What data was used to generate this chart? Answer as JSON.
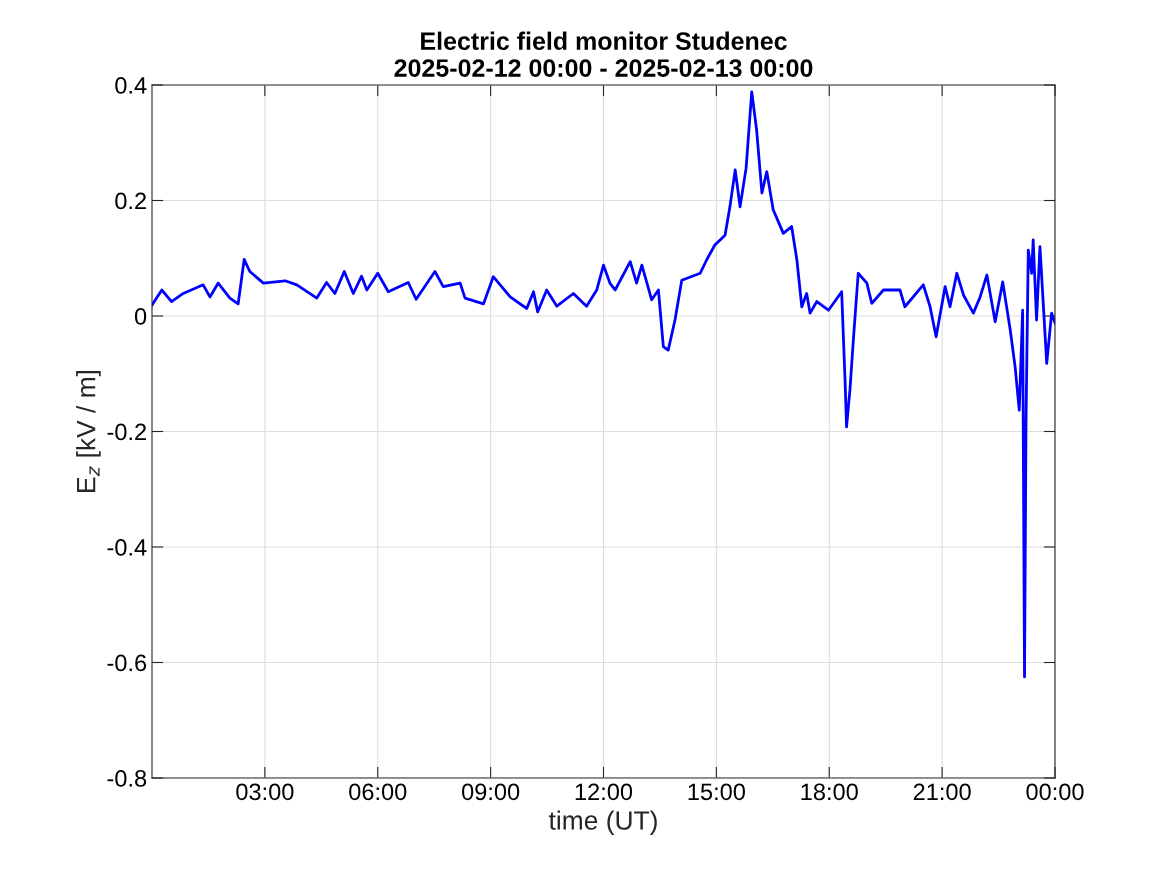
{
  "chart_data": {
    "type": "line",
    "title": "Electric field monitor Studenec\n2025-02-12 00:00 - 2025-02-13 00:00",
    "xlabel": "time (UT)",
    "ylabel": "E$_{z}$ [kV / m]",
    "x": [
      0,
      0.26,
      0.52,
      0.83,
      1.36,
      1.54,
      1.76,
      2.07,
      2.29,
      2.45,
      2.6,
      2.96,
      3.54,
      3.85,
      4.38,
      4.64,
      4.86,
      5.11,
      5.35,
      5.57,
      5.71,
      6.0,
      6.28,
      6.81,
      7.02,
      7.52,
      7.74,
      8.19,
      8.32,
      8.81,
      9.07,
      9.52,
      9.96,
      10.14,
      10.25,
      10.49,
      10.76,
      11.2,
      11.55,
      11.82,
      12.0,
      12.17,
      12.31,
      12.71,
      12.88,
      13.02,
      13.28,
      13.46,
      13.59,
      13.72,
      13.9,
      14.08,
      14.57,
      14.74,
      14.96,
      15.23,
      15.36,
      15.5,
      15.63,
      15.79,
      15.94,
      16.07,
      16.21,
      16.34,
      16.51,
      16.78,
      17.0,
      17.14,
      17.27,
      17.4,
      17.49,
      17.67,
      17.98,
      18.33,
      18.42,
      18.46,
      18.55,
      18.64,
      18.77,
      19.0,
      19.13,
      19.44,
      19.88,
      20.01,
      20.5,
      20.68,
      20.84,
      21.08,
      21.21,
      21.39,
      21.57,
      21.83,
      22.01,
      22.19,
      22.41,
      22.61,
      22.81,
      22.94,
      23.05,
      23.14,
      23.19,
      23.23,
      23.29,
      23.38,
      23.42,
      23.51,
      23.6,
      23.78,
      23.91,
      24.0
    ],
    "series": [
      {
        "color": "#0000ff",
        "values": [
          0.019,
          0.045,
          0.025,
          0.039,
          0.054,
          0.033,
          0.057,
          0.031,
          0.021,
          0.098,
          0.077,
          0.057,
          0.061,
          0.054,
          0.031,
          0.058,
          0.039,
          0.077,
          0.039,
          0.069,
          0.045,
          0.074,
          0.042,
          0.058,
          0.029,
          0.077,
          0.051,
          0.057,
          0.031,
          0.021,
          0.068,
          0.033,
          0.013,
          0.042,
          0.007,
          0.045,
          0.017,
          0.039,
          0.017,
          0.045,
          0.088,
          0.057,
          0.045,
          0.094,
          0.057,
          0.088,
          0.028,
          0.045,
          -0.053,
          -0.059,
          -0.007,
          0.062,
          0.074,
          0.097,
          0.123,
          0.14,
          0.189,
          0.253,
          0.189,
          0.256,
          0.388,
          0.322,
          0.213,
          0.25,
          0.184,
          0.143,
          0.155,
          0.097,
          0.016,
          0.039,
          0.005,
          0.025,
          0.01,
          0.042,
          -0.111,
          -0.192,
          -0.128,
          -0.042,
          0.074,
          0.057,
          0.022,
          0.045,
          0.045,
          0.016,
          0.054,
          0.016,
          -0.036,
          0.051,
          0.016,
          0.074,
          0.036,
          0.005,
          0.033,
          0.071,
          -0.01,
          0.059,
          -0.024,
          -0.088,
          -0.163,
          0.01,
          -0.625,
          -0.18,
          0.114,
          0.074,
          0.132,
          -0.007,
          0.12,
          -0.082,
          0.005,
          -0.012
        ]
      }
    ],
    "xlim": [
      0,
      24
    ],
    "xticks": [
      {
        "value": 3,
        "label": "03:00"
      },
      {
        "value": 6,
        "label": "06:00"
      },
      {
        "value": 9,
        "label": "09:00"
      },
      {
        "value": 12,
        "label": "12:00"
      },
      {
        "value": 15,
        "label": "15:00"
      },
      {
        "value": 18,
        "label": "18:00"
      },
      {
        "value": 21,
        "label": "21:00"
      },
      {
        "value": 24,
        "label": "00:00"
      }
    ],
    "ylim": [
      -0.8,
      0.4
    ],
    "yticks": [
      {
        "value": -0.8,
        "label": "-0.8"
      },
      {
        "value": -0.6,
        "label": "-0.6"
      },
      {
        "value": -0.4,
        "label": "-0.4"
      },
      {
        "value": -0.2,
        "label": "-0.2"
      },
      0,
      {
        "value": 0.2,
        "label": "0.2"
      },
      {
        "value": 0.4,
        "label": "0.4"
      }
    ],
    "grid": true,
    "line_style": "solid",
    "marker": "none"
  }
}
